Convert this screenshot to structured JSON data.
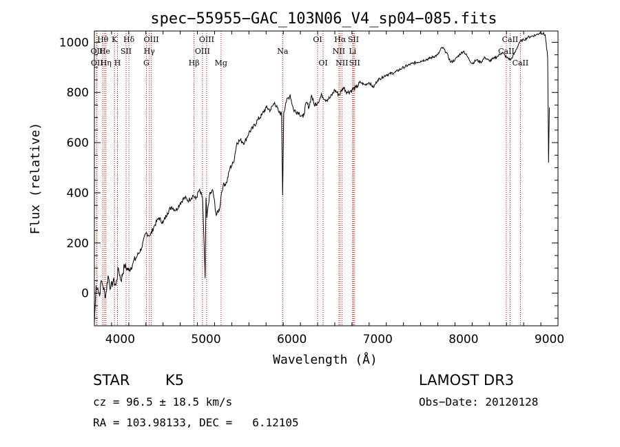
{
  "chart_data": {
    "type": "line",
    "title": "spec−55955−GAC_103N06_V4_sp04−085.fits",
    "xlabel": "Wavelength (Å)",
    "ylabel": "Flux (relative)",
    "xlim": [
      3700,
      9100
    ],
    "ylim": [
      -130,
      1045
    ],
    "x_ticks": [
      4000,
      5000,
      6000,
      7000,
      8000,
      9000
    ],
    "y_ticks": [
      0,
      200,
      400,
      600,
      800,
      1000
    ],
    "grid": false,
    "series": [
      {
        "name": "flux",
        "x": [
          3700,
          3720,
          3740,
          3760,
          3780,
          3800,
          3830,
          3860,
          3890,
          3920,
          3950,
          3980,
          4010,
          4050,
          4100,
          4150,
          4200,
          4250,
          4300,
          4350,
          4400,
          4450,
          4500,
          4550,
          4600,
          4650,
          4700,
          4750,
          4800,
          4850,
          4880,
          4920,
          4960,
          4990,
          5000,
          5010,
          5040,
          5080,
          5120,
          5160,
          5180,
          5200,
          5240,
          5280,
          5320,
          5360,
          5400,
          5450,
          5500,
          5550,
          5600,
          5650,
          5700,
          5750,
          5800,
          5850,
          5880,
          5893,
          5906,
          5930,
          5980,
          6020,
          6080,
          6130,
          6170,
          6200,
          6230,
          6260,
          6300,
          6350,
          6400,
          6450,
          6500,
          6550,
          6600,
          6650,
          6700,
          6750,
          6800,
          6850,
          6900,
          6950,
          7000,
          7100,
          7200,
          7300,
          7400,
          7500,
          7600,
          7700,
          7750,
          7800,
          7850,
          7900,
          7950,
          8000,
          8050,
          8100,
          8150,
          8200,
          8250,
          8300,
          8350,
          8400,
          8450,
          8500,
          8550,
          8600,
          8650,
          8700,
          8750,
          8800,
          8850,
          8900,
          8950,
          8980,
          8990,
          9000
        ],
        "y": [
          -120,
          30,
          20,
          -10,
          50,
          30,
          -15,
          70,
          20,
          50,
          30,
          100,
          50,
          110,
          90,
          120,
          150,
          180,
          240,
          230,
          270,
          300,
          280,
          320,
          345,
          330,
          360,
          380,
          370,
          390,
          375,
          410,
          380,
          60,
          380,
          300,
          390,
          410,
          310,
          340,
          400,
          430,
          440,
          500,
          520,
          600,
          610,
          600,
          640,
          660,
          690,
          710,
          740,
          730,
          760,
          720,
          715,
          390,
          720,
          760,
          790,
          730,
          720,
          700,
          760,
          740,
          790,
          750,
          760,
          790,
          770,
          780,
          810,
          790,
          820,
          800,
          810,
          820,
          840,
          830,
          840,
          820,
          850,
          870,
          880,
          900,
          915,
          925,
          935,
          950,
          980,
          960,
          920,
          930,
          950,
          965,
          940,
          915,
          930,
          920,
          940,
          925,
          935,
          945,
          960,
          940,
          930,
          960,
          1000,
          1010,
          1020,
          1025,
          1030,
          1040,
          1030,
          940,
          520,
          740
        ]
      }
    ],
    "lines": [
      {
        "label": "Hθ",
        "x": 3798,
        "row": 1
      },
      {
        "label": "OII",
        "x": 3727,
        "row": 2
      },
      {
        "label": "OII",
        "x": 3730,
        "row": 3
      },
      {
        "label": "He",
        "x": 3820,
        "row": 2
      },
      {
        "label": "Hη",
        "x": 3835,
        "row": 3
      },
      {
        "label": "K",
        "x": 3934,
        "row": 1
      },
      {
        "label": "SII",
        "x": 4069,
        "row": 2
      },
      {
        "label": "H",
        "x": 3969,
        "row": 3
      },
      {
        "label": "Hδ",
        "x": 4102,
        "row": 1
      },
      {
        "label": "OIII",
        "x": 4363,
        "row": 1
      },
      {
        "label": "Hγ",
        "x": 4340,
        "row": 2
      },
      {
        "label": "G",
        "x": 4305,
        "row": 3
      },
      {
        "label": "Hβ",
        "x": 4861,
        "row": 3
      },
      {
        "label": "OIII",
        "x": 5007,
        "row": 1
      },
      {
        "label": "OIII",
        "x": 4959,
        "row": 2
      },
      {
        "label": "Mg",
        "x": 5175,
        "row": 3
      },
      {
        "label": "Na",
        "x": 5893,
        "row": 2
      },
      {
        "label": "OI",
        "x": 6300,
        "row": 1
      },
      {
        "label": "OI",
        "x": 6364,
        "row": 3
      },
      {
        "label": "Hα",
        "x": 6563,
        "row": 1
      },
      {
        "label": "NII",
        "x": 6548,
        "row": 2
      },
      {
        "label": "NII",
        "x": 6583,
        "row": 3
      },
      {
        "label": "SII",
        "x": 6717,
        "row": 1
      },
      {
        "label": "Li",
        "x": 6708,
        "row": 2
      },
      {
        "label": "SII",
        "x": 6731,
        "row": 3
      },
      {
        "label": "CaII",
        "x": 8542,
        "row": 1
      },
      {
        "label": "CaII",
        "x": 8498,
        "row": 2
      },
      {
        "label": "CaII",
        "x": 8662,
        "row": 3
      }
    ]
  },
  "info": {
    "object_type": "STAR",
    "subclass": "K5",
    "survey": "LAMOST DR3",
    "cz": "cz = 96.5 ± 18.5 km/s",
    "obs_date": "Obs−Date: 20120128",
    "coords": "RA = 103.98133, DEC =   6.12105"
  }
}
